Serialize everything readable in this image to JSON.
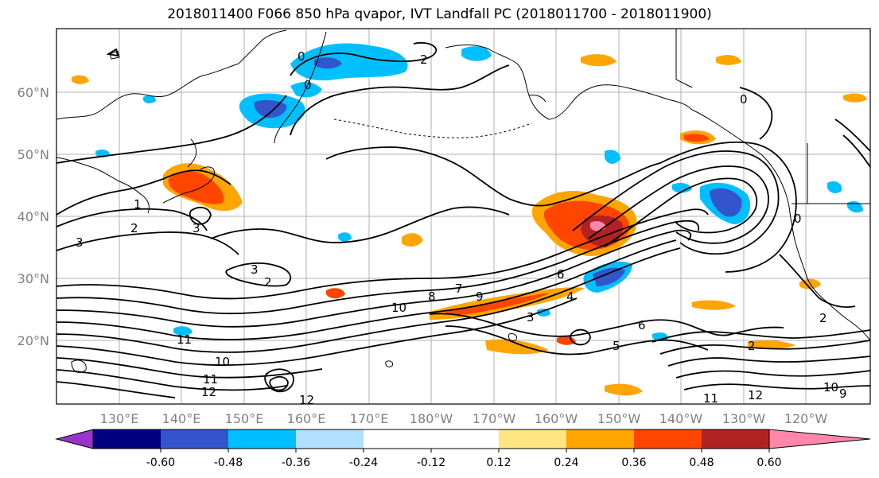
{
  "title": "2018011400 F066 850 hPa qvapor, IVT Landfall PC (2018011700 - 2018011900)",
  "lat_labels": [
    "60°N",
    "50°N",
    "40°N",
    "30°N",
    "20°N"
  ],
  "lon_labels": [
    "130°E",
    "140°E",
    "150°E",
    "160°E",
    "170°E",
    "180°W",
    "170°W",
    "160°W",
    "150°W",
    "140°W",
    "130°W",
    "120°W"
  ],
  "colorbar": {
    "colors": [
      "#9933cc",
      "#000080",
      "#3355cc",
      "#00bfff",
      "#b0e0ff",
      "#ffffff",
      "#ffffff",
      "#ffe680",
      "#ffa500",
      "#ff4500",
      "#b22222",
      "#ff88aa"
    ],
    "tick_labels": [
      "-0.60",
      "-0.48",
      "-0.36",
      "-0.24",
      "-0.12",
      "0.12",
      "0.24",
      "0.36",
      "0.48",
      "0.60"
    ]
  },
  "contour_labels": [
    "0",
    "0",
    "0",
    "3",
    "3",
    "3",
    "2",
    "2",
    "2",
    "1",
    "7",
    "8",
    "9",
    "10",
    "10",
    "11",
    "11",
    "12",
    "12",
    "6",
    "4",
    "3",
    "2",
    "5",
    "6",
    "10",
    "9",
    "11",
    "12",
    "2",
    "0"
  ]
}
